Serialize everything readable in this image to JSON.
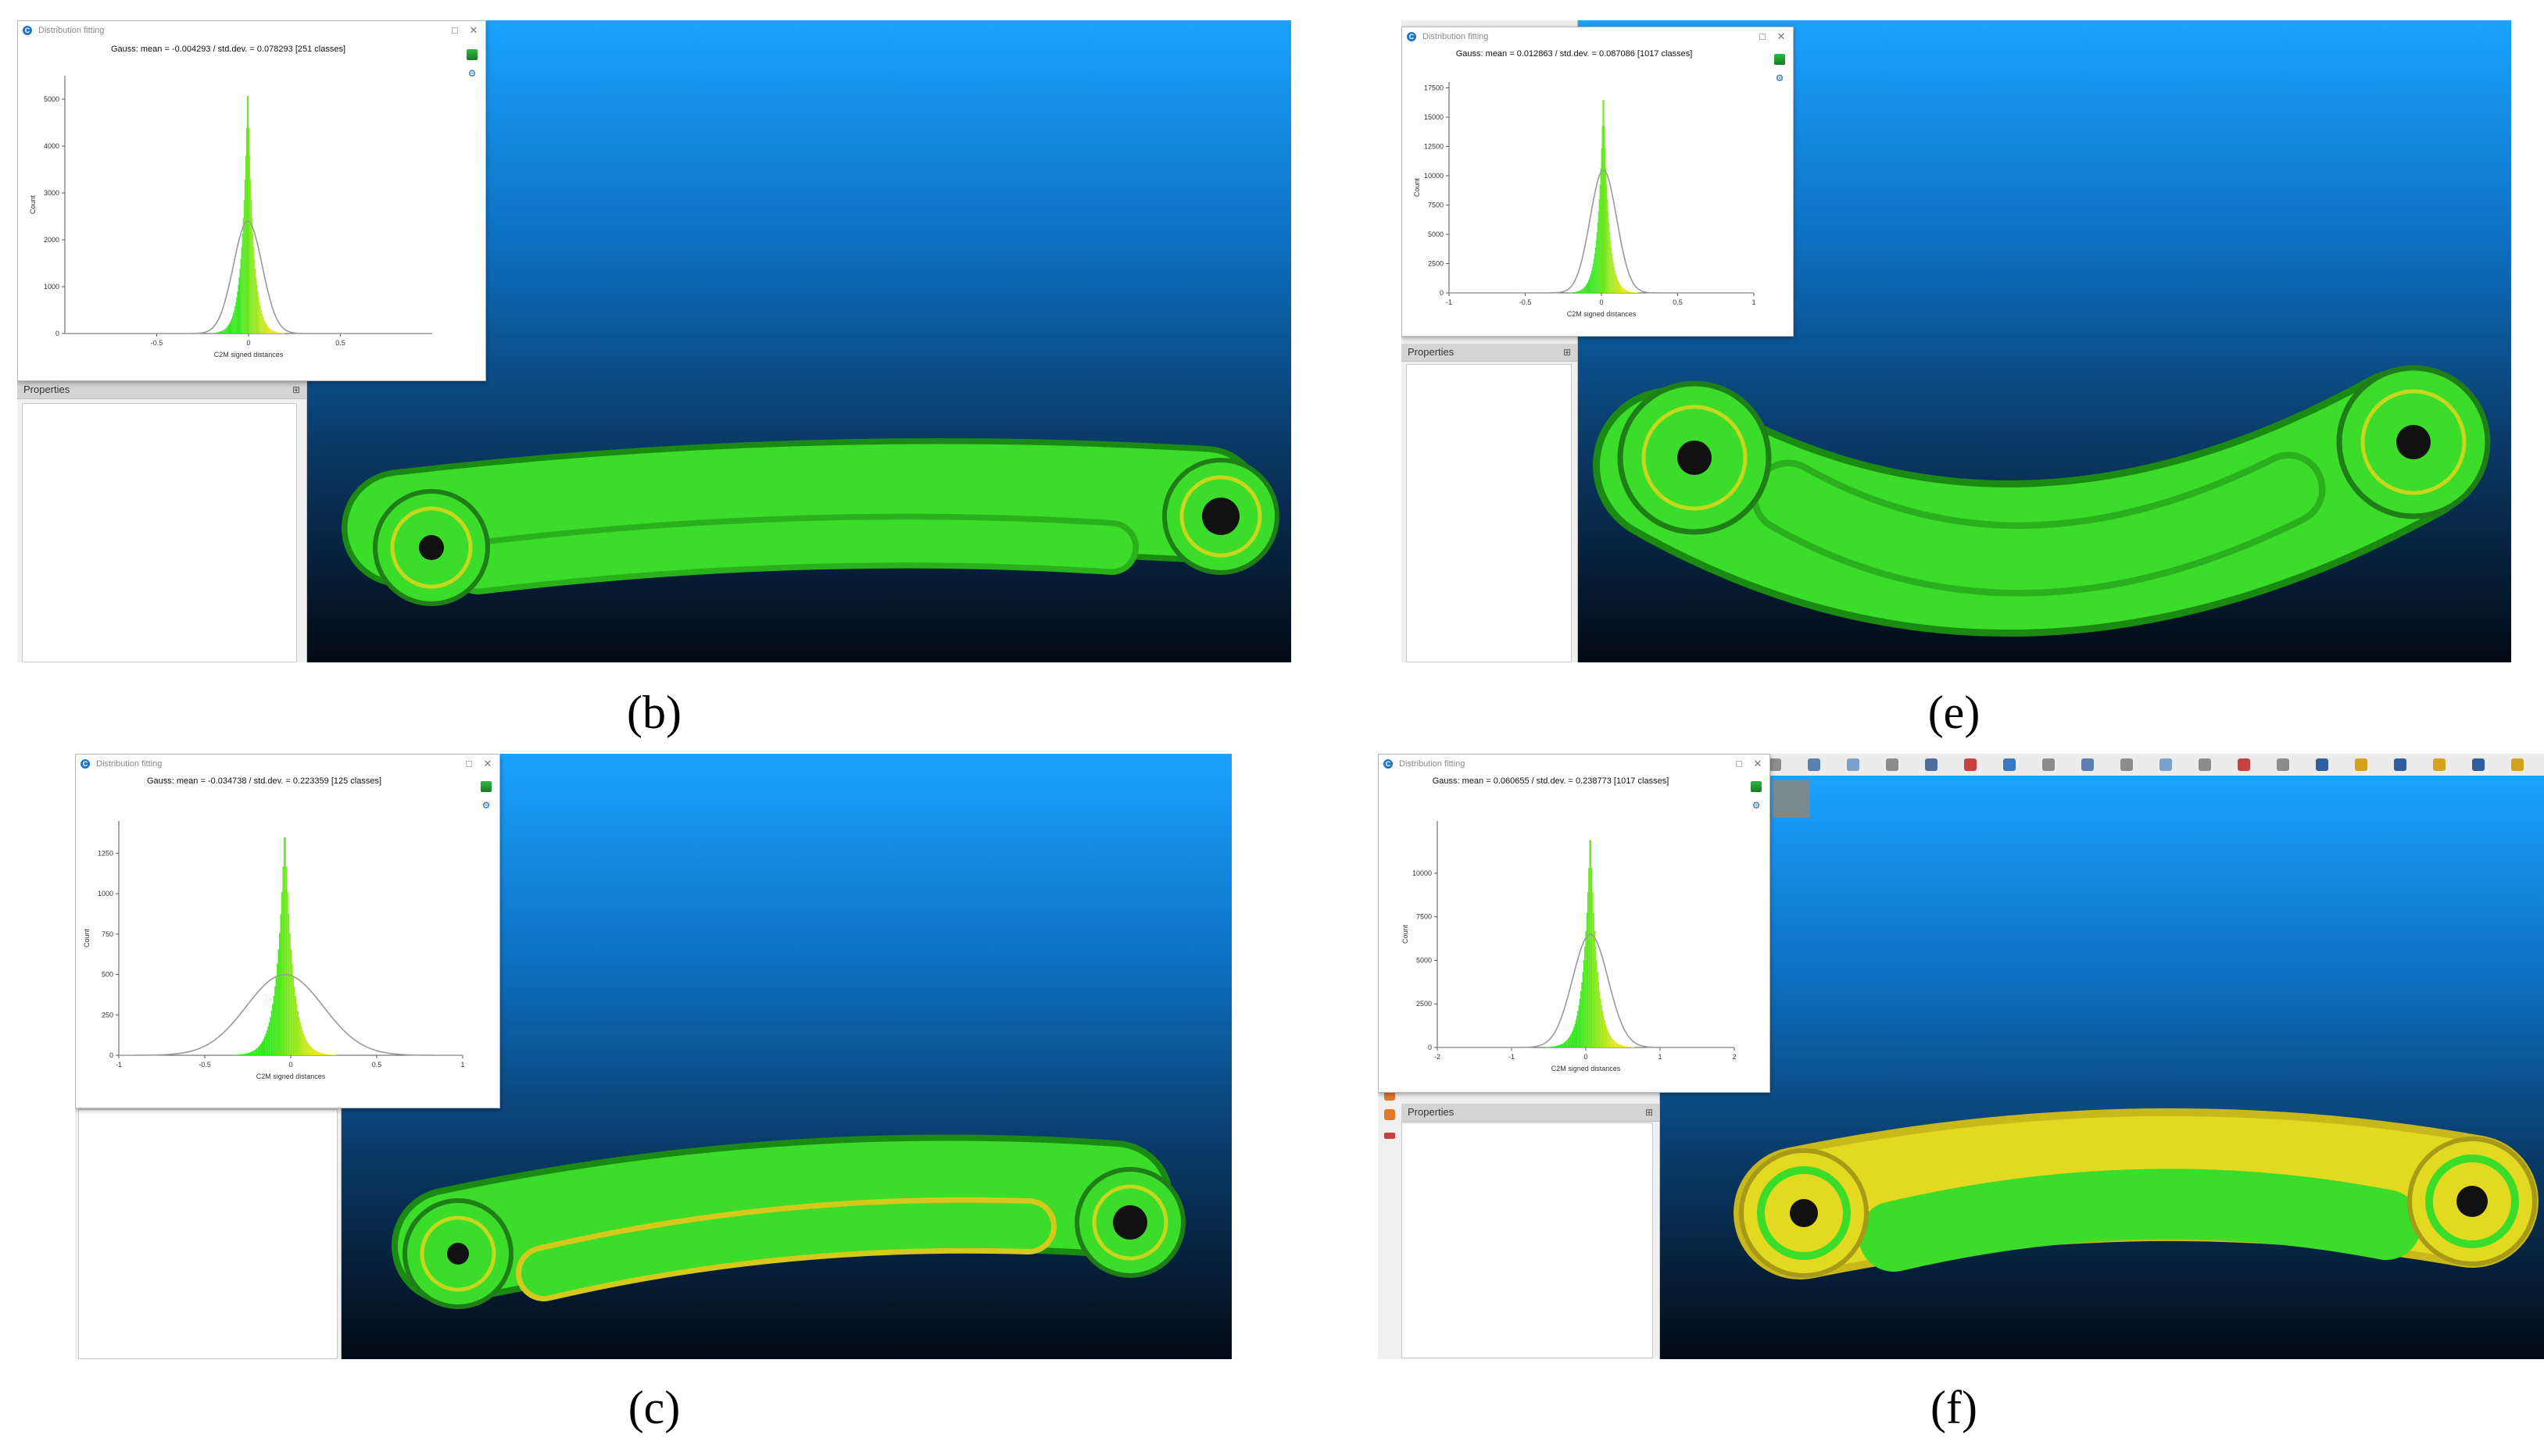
{
  "panels": [
    {
      "id": "b",
      "caption": "(b)",
      "window_title": "Distribution fitting",
      "fit_summary": "Gauss: mean = -0.004293 / std.dev. = 0.078293 [251 classes]",
      "properties_label": "Properties",
      "chart_data": {
        "type": "bar",
        "title": "Gauss: mean = -0.004293 / std.dev. = 0.078293 [251 classes]",
        "xlabel": "C2M signed distances",
        "ylabel": "Count",
        "xlim": [
          -1,
          1
        ],
        "ylim": [
          0,
          5500
        ],
        "x_ticks": [
          -0.5,
          0,
          0.5
        ],
        "y_ticks": [
          0,
          1000,
          2000,
          3000,
          4000,
          5000
        ],
        "gauss": {
          "mean": -0.004293,
          "std": 0.078293,
          "peak": 2400
        },
        "hist_peak": 5450,
        "hist_width": 0.04
      }
    },
    {
      "id": "e",
      "caption": "(e)",
      "window_title": "Distribution fitting",
      "fit_summary": "Gauss: mean = 0.012863 / std.dev. = 0.087086 [1017 classes]",
      "properties_label": "Properties",
      "chart_data": {
        "type": "bar",
        "title": "Gauss: mean = 0.012863 / std.dev. = 0.087086 [1017 classes]",
        "xlabel": "C2M signed distances",
        "ylabel": "Count",
        "xlim": [
          -1,
          1
        ],
        "ylim": [
          0,
          18000
        ],
        "x_ticks": [
          -1,
          -0.5,
          0,
          0.5,
          1
        ],
        "y_ticks": [
          0,
          2500,
          5000,
          7500,
          10000,
          12500,
          15000,
          17500
        ],
        "gauss": {
          "mean": 0.012863,
          "std": 0.087086,
          "peak": 10500
        },
        "hist_peak": 17700,
        "hist_width": 0.045
      }
    },
    {
      "id": "c",
      "caption": "(c)",
      "window_title": "Distribution fitting",
      "fit_summary": "Gauss: mean = -0.034738 / std.dev. = 0.223359 [125 classes]",
      "properties_label": "Properties",
      "chart_data": {
        "type": "bar",
        "title": "Gauss: mean = -0.034738 / std.dev. = 0.223359 [125 classes]",
        "xlabel": "C2M signed distances",
        "ylabel": "Count",
        "xlim": [
          -1,
          1
        ],
        "ylim": [
          0,
          1450
        ],
        "x_ticks": [
          -1,
          -0.5,
          0,
          0.5,
          1
        ],
        "y_ticks": [
          0,
          250,
          500,
          750,
          1000,
          1250
        ],
        "gauss": {
          "mean": -0.034738,
          "std": 0.223359,
          "peak": 500
        },
        "hist_peak": 1450,
        "hist_width": 0.06
      }
    },
    {
      "id": "f",
      "caption": "(f)",
      "window_title": "Distribution fitting",
      "fit_summary": "Gauss: mean = 0.060655 / std.dev. = 0.238773 [1017 classes]",
      "properties_label": "Properties",
      "chart_data": {
        "type": "bar",
        "title": "Gauss: mean = 0.060655 / std.dev. = 0.238773 [1017 classes]",
        "xlabel": "C2M signed distances",
        "ylabel": "Count",
        "xlim": [
          -2,
          2
        ],
        "ylim": [
          0,
          13000
        ],
        "x_ticks": [
          -2,
          -1,
          0,
          1,
          2
        ],
        "y_ticks": [
          0,
          2500,
          5000,
          7500,
          10000
        ],
        "gauss": {
          "mean": 0.060655,
          "std": 0.238773,
          "peak": 6500
        },
        "hist_peak": 12800,
        "hist_width": 0.12
      }
    }
  ],
  "colors": {
    "hist_green": "#33e81a",
    "hist_yellow": "#e6e61a",
    "gauss_curve": "#9a9a9a",
    "part_green": "#3bdc2a",
    "part_yellow": "#e3d920"
  },
  "icons": [
    "app-logo-icon",
    "export-icon",
    "chart-settings-icon",
    "minimize-icon",
    "maximize-icon",
    "close-icon",
    "pin-icon"
  ]
}
